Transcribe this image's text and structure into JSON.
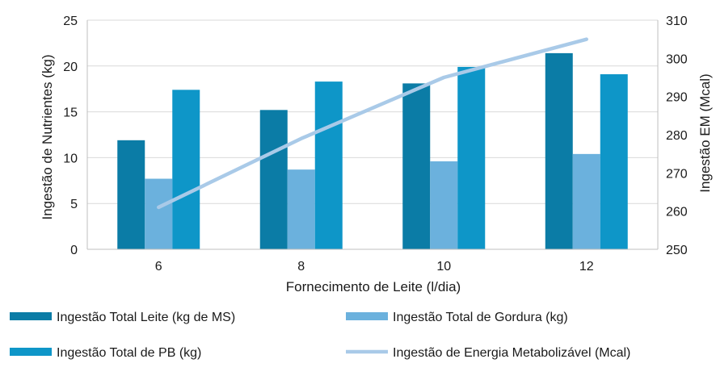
{
  "chart_data": {
    "type": "bar",
    "categories": [
      "6",
      "8",
      "10",
      "12"
    ],
    "xlabel": "Fornecimento de Leite (l/dia)",
    "ylabel": "Ingestão de Nutrientes (kg)",
    "y2label": "Ingestão EM (Mcal)",
    "ylim": [
      0,
      25
    ],
    "y2lim": [
      250,
      310
    ],
    "yticks": [
      "0",
      "5",
      "10",
      "15",
      "20",
      "25"
    ],
    "y2ticks": [
      "250",
      "260",
      "270",
      "280",
      "290",
      "300",
      "310"
    ],
    "grid": "horizontal",
    "legend_position": "bottom",
    "series": [
      {
        "name": "Ingestão Total Leite (kg de MS)",
        "type": "bar",
        "axis": "left",
        "color": "#0B7CA6",
        "values": [
          11.9,
          15.2,
          18.1,
          21.4
        ]
      },
      {
        "name": "Ingestão Total de Gordura (kg)",
        "type": "bar",
        "axis": "left",
        "color": "#6BB1DD",
        "values": [
          7.7,
          8.7,
          9.6,
          10.4
        ]
      },
      {
        "name": "Ingestão Total de PB (kg)",
        "type": "bar",
        "axis": "left",
        "color": "#0E96C8",
        "values": [
          17.4,
          18.3,
          19.9,
          19.1
        ]
      },
      {
        "name": "Ingestão de Energia Metabolizável (Mcal)",
        "type": "line",
        "axis": "right",
        "color": "#A9CAE8",
        "values": [
          261,
          279,
          295,
          305
        ]
      }
    ]
  }
}
